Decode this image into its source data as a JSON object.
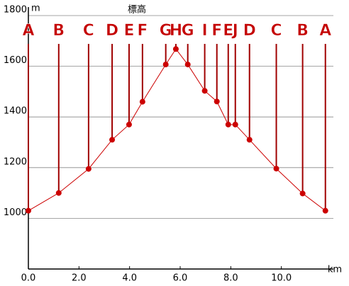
{
  "chart_data": {
    "type": "line",
    "title": "標高",
    "y_label": "m",
    "x_label": "km",
    "xlim": [
      0,
      12
    ],
    "ylim": [
      800,
      1800
    ],
    "xticks": [
      {
        "value": 0,
        "label": "0.0"
      },
      {
        "value": 2,
        "label": "2.0"
      },
      {
        "value": 4,
        "label": "4.0"
      },
      {
        "value": 6,
        "label": "6.0"
      },
      {
        "value": 8,
        "label": "8.0"
      },
      {
        "value": 10,
        "label": "10.0"
      }
    ],
    "yticks": [
      1000,
      1200,
      1400,
      1600,
      1800
    ],
    "grid": true,
    "color": "#cc0000",
    "x": [
      0,
      1.2,
      2.38,
      3.31,
      3.98,
      4.51,
      5.43,
      5.83,
      6.3,
      6.97,
      7.45,
      7.9,
      8.18,
      8.74,
      9.8,
      10.84,
      11.74
    ],
    "values": [
      1030,
      1100,
      1195,
      1310,
      1370,
      1460,
      1607,
      1668,
      1607,
      1503,
      1461,
      1370,
      1370,
      1310,
      1196,
      1098,
      1030
    ],
    "labels": [
      "A",
      "B",
      "C",
      "D",
      "E",
      "F",
      "G",
      "H",
      "G",
      "I",
      "F",
      "E",
      "J",
      "D",
      "C",
      "B",
      "A"
    ]
  }
}
